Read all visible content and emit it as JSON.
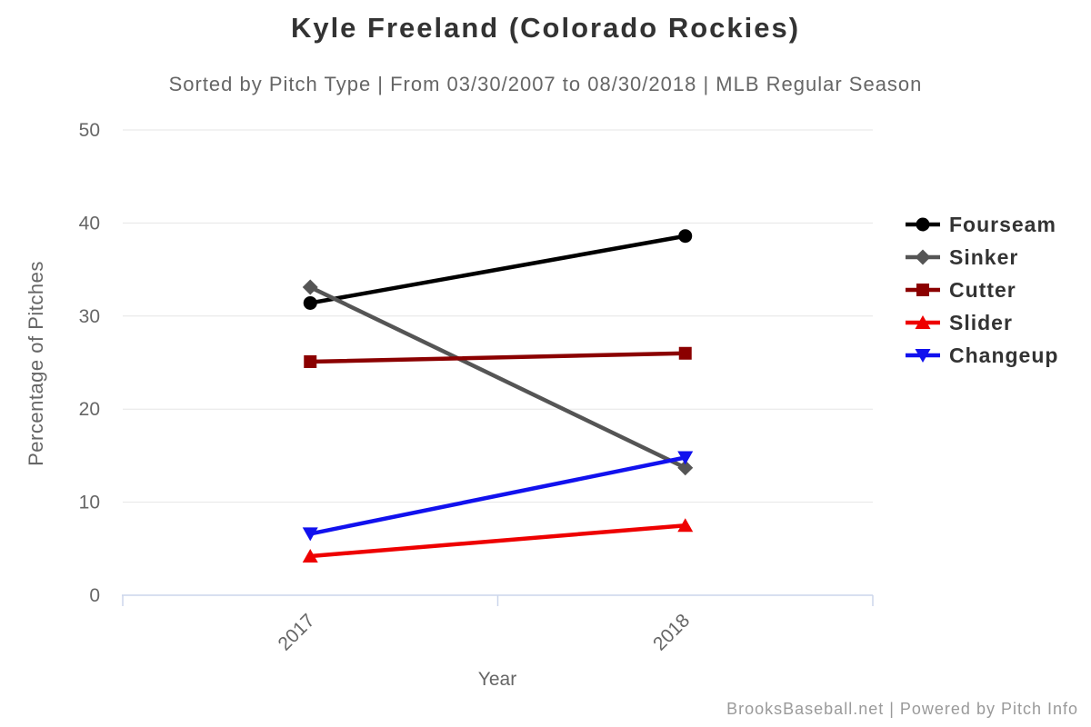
{
  "footer": {
    "credits": "BrooksBaseball.net | Powered by Pitch Info"
  },
  "chart_data": {
    "type": "line",
    "title": "Kyle Freeland (Colorado Rockies)",
    "subtitle": "Sorted by Pitch Type | From 03/30/2007 to 08/30/2018 | MLB Regular Season",
    "xlabel": "Year",
    "ylabel": "Percentage of Pitches",
    "categories": [
      "2017",
      "2018"
    ],
    "ylim": [
      0,
      50
    ],
    "yticks": [
      0,
      10,
      20,
      30,
      40,
      50
    ],
    "grid": true,
    "legend_position": "right",
    "series": [
      {
        "name": "Fourseam",
        "color": "#000000",
        "marker": "circle",
        "values": [
          31.4,
          38.6
        ]
      },
      {
        "name": "Sinker",
        "color": "#555555",
        "marker": "diamond",
        "values": [
          33.1,
          13.7
        ]
      },
      {
        "name": "Cutter",
        "color": "#8b0000",
        "marker": "square",
        "values": [
          25.1,
          26.0
        ]
      },
      {
        "name": "Slider",
        "color": "#ee0000",
        "marker": "triangle-up",
        "values": [
          4.2,
          7.5
        ]
      },
      {
        "name": "Changeup",
        "color": "#1111ee",
        "marker": "triangle-down",
        "values": [
          6.6,
          14.8
        ]
      }
    ],
    "colors": {
      "grid": "#e6e6e6",
      "axis_line": "#ccd6eb",
      "title": "#333333",
      "subtitle": "#666666",
      "tick_label": "#666666",
      "axis_title": "#666666",
      "legend_text": "#333333",
      "credits": "#9a9a9a"
    }
  }
}
